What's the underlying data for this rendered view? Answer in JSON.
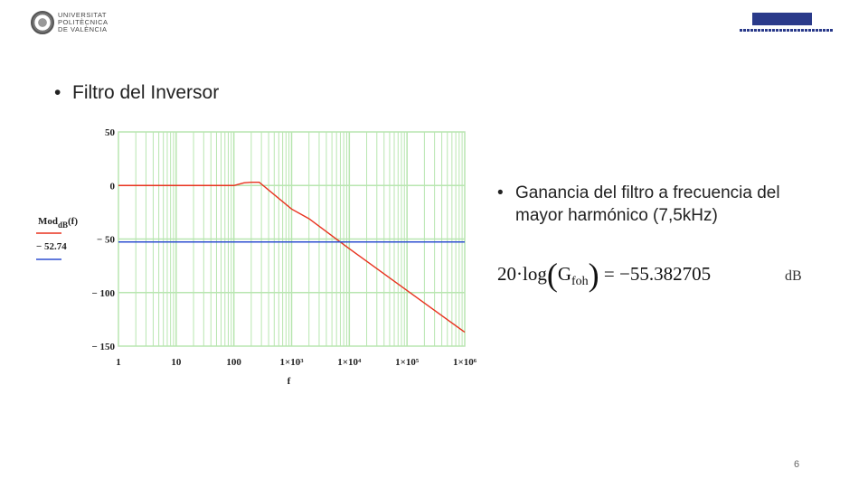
{
  "header": {
    "logo_left": [
      "UNIVERSITAT",
      "POLITÈCNICA",
      "DE VALÈNCIA"
    ]
  },
  "bullets": [
    "Filtro del Inversor",
    "Ganancia del filtro a frecuencia del mayor harmónico (7,5kHz)"
  ],
  "chart_data": {
    "type": "line",
    "x_label": "f",
    "x": [
      1,
      10,
      100,
      150,
      200,
      275,
      1000,
      2000,
      10000,
      100000,
      1000000
    ],
    "xlog": true,
    "xlim": [
      1,
      1000000
    ],
    "xticks": [
      1,
      10,
      100,
      {
        "value": 1000,
        "label": "1×10³"
      },
      {
        "value": 10000,
        "label": "1×10⁴"
      },
      {
        "value": 100000,
        "label": "1×10⁵"
      },
      {
        "value": 1000000,
        "label": "1×10⁶"
      }
    ],
    "ylim": [
      -150,
      50
    ],
    "yticks": [
      50,
      0,
      {
        "value": -50,
        "label": "− 50"
      },
      {
        "value": -100,
        "label": "− 100"
      },
      {
        "value": -150,
        "label": "− 150"
      }
    ],
    "grid": true,
    "grid_color": "#b8e6b0",
    "series": [
      {
        "name": "Mod",
        "name_sub": "dB",
        "name_arg": "(f)",
        "color": "#e8321e",
        "values": [
          0,
          0,
          0,
          2.5,
          3,
          3,
          -22,
          -31,
          -59,
          -98,
          -137
        ]
      },
      {
        "name": "− 52.74",
        "color": "#2f4fd0",
        "values": [
          -52.74,
          -52.74,
          -52.74,
          -52.74,
          -52.74,
          -52.74,
          -52.74,
          -52.74,
          -52.74,
          -52.74,
          -52.74
        ]
      }
    ]
  },
  "equation": {
    "left": "20·log",
    "symbol": "G",
    "symbol_sub": "foh",
    "right": "= −55.382705",
    "unit": "dB"
  },
  "page_number": "6"
}
